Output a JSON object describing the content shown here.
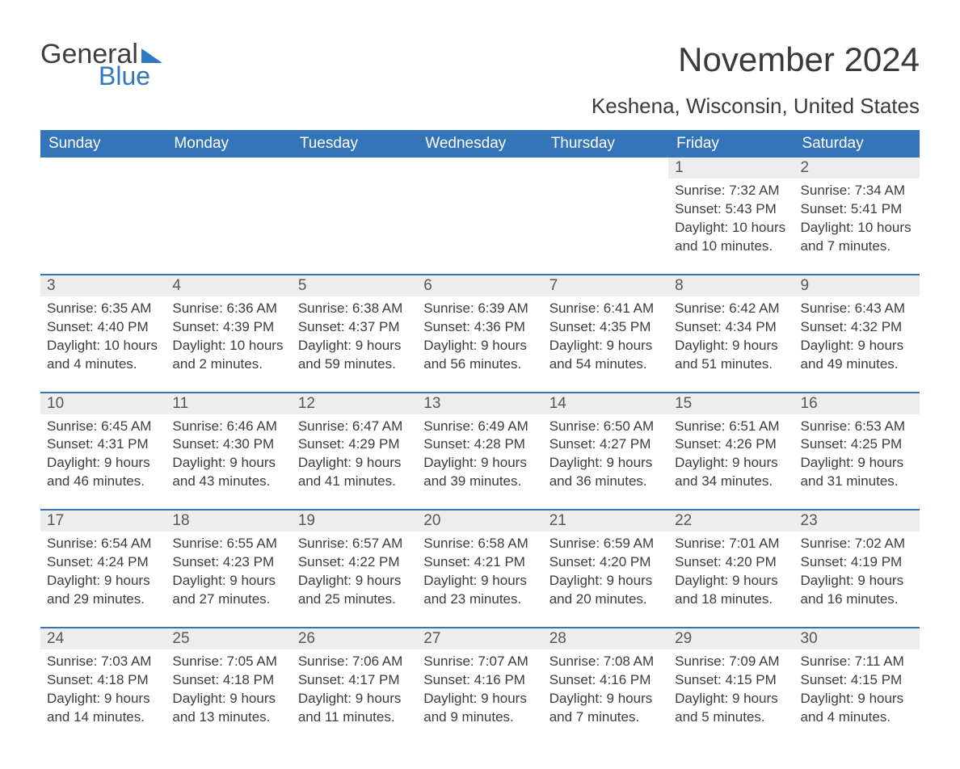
{
  "logo": {
    "word1": "General",
    "word2": "Blue",
    "accent_color": "#2f78bf"
  },
  "title": "November 2024",
  "location": "Keshena, Wisconsin, United States",
  "colors": {
    "header_bg": "#3474b9",
    "header_text": "#ffffff",
    "row_divider": "#3474b9",
    "daynum_bg": "#ededed",
    "body_text": "#3c3c3c",
    "page_bg": "#ffffff"
  },
  "fonts": {
    "title_size_pt": 42,
    "location_size_pt": 26,
    "header_size_pt": 19,
    "body_size_pt": 17
  },
  "day_headers": [
    "Sunday",
    "Monday",
    "Tuesday",
    "Wednesday",
    "Thursday",
    "Friday",
    "Saturday"
  ],
  "labels": {
    "sunrise": "Sunrise:",
    "sunset": "Sunset:",
    "daylight": "Daylight:"
  },
  "weeks": [
    [
      null,
      null,
      null,
      null,
      null,
      {
        "n": 1,
        "sunrise": "7:32 AM",
        "sunset": "5:43 PM",
        "daylight": "10 hours and 10 minutes."
      },
      {
        "n": 2,
        "sunrise": "7:34 AM",
        "sunset": "5:41 PM",
        "daylight": "10 hours and 7 minutes."
      }
    ],
    [
      {
        "n": 3,
        "sunrise": "6:35 AM",
        "sunset": "4:40 PM",
        "daylight": "10 hours and 4 minutes."
      },
      {
        "n": 4,
        "sunrise": "6:36 AM",
        "sunset": "4:39 PM",
        "daylight": "10 hours and 2 minutes."
      },
      {
        "n": 5,
        "sunrise": "6:38 AM",
        "sunset": "4:37 PM",
        "daylight": "9 hours and 59 minutes."
      },
      {
        "n": 6,
        "sunrise": "6:39 AM",
        "sunset": "4:36 PM",
        "daylight": "9 hours and 56 minutes."
      },
      {
        "n": 7,
        "sunrise": "6:41 AM",
        "sunset": "4:35 PM",
        "daylight": "9 hours and 54 minutes."
      },
      {
        "n": 8,
        "sunrise": "6:42 AM",
        "sunset": "4:34 PM",
        "daylight": "9 hours and 51 minutes."
      },
      {
        "n": 9,
        "sunrise": "6:43 AM",
        "sunset": "4:32 PM",
        "daylight": "9 hours and 49 minutes."
      }
    ],
    [
      {
        "n": 10,
        "sunrise": "6:45 AM",
        "sunset": "4:31 PM",
        "daylight": "9 hours and 46 minutes."
      },
      {
        "n": 11,
        "sunrise": "6:46 AM",
        "sunset": "4:30 PM",
        "daylight": "9 hours and 43 minutes."
      },
      {
        "n": 12,
        "sunrise": "6:47 AM",
        "sunset": "4:29 PM",
        "daylight": "9 hours and 41 minutes."
      },
      {
        "n": 13,
        "sunrise": "6:49 AM",
        "sunset": "4:28 PM",
        "daylight": "9 hours and 39 minutes."
      },
      {
        "n": 14,
        "sunrise": "6:50 AM",
        "sunset": "4:27 PM",
        "daylight": "9 hours and 36 minutes."
      },
      {
        "n": 15,
        "sunrise": "6:51 AM",
        "sunset": "4:26 PM",
        "daylight": "9 hours and 34 minutes."
      },
      {
        "n": 16,
        "sunrise": "6:53 AM",
        "sunset": "4:25 PM",
        "daylight": "9 hours and 31 minutes."
      }
    ],
    [
      {
        "n": 17,
        "sunrise": "6:54 AM",
        "sunset": "4:24 PM",
        "daylight": "9 hours and 29 minutes."
      },
      {
        "n": 18,
        "sunrise": "6:55 AM",
        "sunset": "4:23 PM",
        "daylight": "9 hours and 27 minutes."
      },
      {
        "n": 19,
        "sunrise": "6:57 AM",
        "sunset": "4:22 PM",
        "daylight": "9 hours and 25 minutes."
      },
      {
        "n": 20,
        "sunrise": "6:58 AM",
        "sunset": "4:21 PM",
        "daylight": "9 hours and 23 minutes."
      },
      {
        "n": 21,
        "sunrise": "6:59 AM",
        "sunset": "4:20 PM",
        "daylight": "9 hours and 20 minutes."
      },
      {
        "n": 22,
        "sunrise": "7:01 AM",
        "sunset": "4:20 PM",
        "daylight": "9 hours and 18 minutes."
      },
      {
        "n": 23,
        "sunrise": "7:02 AM",
        "sunset": "4:19 PM",
        "daylight": "9 hours and 16 minutes."
      }
    ],
    [
      {
        "n": 24,
        "sunrise": "7:03 AM",
        "sunset": "4:18 PM",
        "daylight": "9 hours and 14 minutes."
      },
      {
        "n": 25,
        "sunrise": "7:05 AM",
        "sunset": "4:18 PM",
        "daylight": "9 hours and 13 minutes."
      },
      {
        "n": 26,
        "sunrise": "7:06 AM",
        "sunset": "4:17 PM",
        "daylight": "9 hours and 11 minutes."
      },
      {
        "n": 27,
        "sunrise": "7:07 AM",
        "sunset": "4:16 PM",
        "daylight": "9 hours and 9 minutes."
      },
      {
        "n": 28,
        "sunrise": "7:08 AM",
        "sunset": "4:16 PM",
        "daylight": "9 hours and 7 minutes."
      },
      {
        "n": 29,
        "sunrise": "7:09 AM",
        "sunset": "4:15 PM",
        "daylight": "9 hours and 5 minutes."
      },
      {
        "n": 30,
        "sunrise": "7:11 AM",
        "sunset": "4:15 PM",
        "daylight": "9 hours and 4 minutes."
      }
    ]
  ]
}
